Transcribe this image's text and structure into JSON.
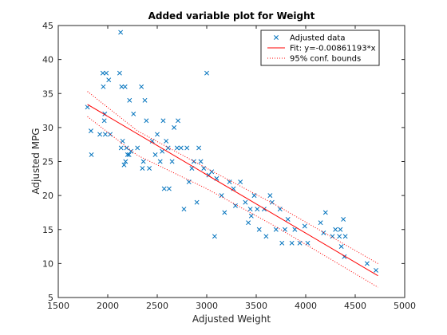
{
  "chart_data": {
    "type": "scatter",
    "title": "Added variable plot for Weight",
    "xlabel": "Adjusted Weight",
    "ylabel": "Adjusted MPG",
    "xlim": [
      1500,
      5000
    ],
    "ylim": [
      5,
      45
    ],
    "xticks": [
      1500,
      2000,
      2500,
      3000,
      3500,
      4000,
      4500,
      5000
    ],
    "yticks": [
      5,
      10,
      15,
      20,
      25,
      30,
      35,
      40,
      45
    ],
    "xtick_labels": [
      "1500",
      "2000",
      "2500",
      "3000",
      "3500",
      "4000",
      "4500",
      "5000"
    ],
    "ytick_labels": [
      "5",
      "10",
      "15",
      "20",
      "25",
      "30",
      "35",
      "40",
      "45"
    ],
    "grid": false,
    "legend_position": "top-right",
    "series": [
      {
        "name": "Adjusted data",
        "kind": "markers",
        "marker": "x",
        "color": "#0072BD",
        "points": [
          [
            1795,
            33
          ],
          [
            1830,
            29.5
          ],
          [
            1835,
            26
          ],
          [
            1920,
            29
          ],
          [
            1950,
            38
          ],
          [
            1955,
            36
          ],
          [
            1965,
            31
          ],
          [
            1970,
            32
          ],
          [
            1975,
            29
          ],
          [
            1985,
            38
          ],
          [
            2010,
            37
          ],
          [
            2025,
            29
          ],
          [
            2120,
            38
          ],
          [
            2130,
            44
          ],
          [
            2135,
            27
          ],
          [
            2140,
            36
          ],
          [
            2150,
            28
          ],
          [
            2165,
            24.5
          ],
          [
            2175,
            36
          ],
          [
            2180,
            25
          ],
          [
            2190,
            27
          ],
          [
            2200,
            26
          ],
          [
            2215,
            26
          ],
          [
            2220,
            34
          ],
          [
            2235,
            26.5
          ],
          [
            2260,
            32
          ],
          [
            2300,
            27
          ],
          [
            2340,
            36
          ],
          [
            2350,
            24
          ],
          [
            2360,
            25
          ],
          [
            2375,
            34
          ],
          [
            2390,
            31
          ],
          [
            2420,
            24
          ],
          [
            2450,
            28
          ],
          [
            2480,
            26
          ],
          [
            2500,
            29
          ],
          [
            2530,
            25
          ],
          [
            2550,
            26.5
          ],
          [
            2560,
            31
          ],
          [
            2570,
            21
          ],
          [
            2590,
            28
          ],
          [
            2610,
            27
          ],
          [
            2620,
            21
          ],
          [
            2650,
            25
          ],
          [
            2670,
            30
          ],
          [
            2700,
            27
          ],
          [
            2710,
            31
          ],
          [
            2740,
            27
          ],
          [
            2770,
            18
          ],
          [
            2800,
            27
          ],
          [
            2820,
            22
          ],
          [
            2850,
            24
          ],
          [
            2870,
            25
          ],
          [
            2900,
            19
          ],
          [
            2920,
            27
          ],
          [
            2940,
            25
          ],
          [
            2970,
            24
          ],
          [
            3000,
            38
          ],
          [
            3020,
            23
          ],
          [
            3050,
            23.5
          ],
          [
            3080,
            14
          ],
          [
            3100,
            22.5
          ],
          [
            3150,
            20
          ],
          [
            3180,
            17.5
          ],
          [
            3230,
            22
          ],
          [
            3270,
            21
          ],
          [
            3290,
            18.5
          ],
          [
            3340,
            22
          ],
          [
            3390,
            19
          ],
          [
            3420,
            16
          ],
          [
            3440,
            18
          ],
          [
            3450,
            17
          ],
          [
            3480,
            20
          ],
          [
            3510,
            18
          ],
          [
            3530,
            15
          ],
          [
            3580,
            18
          ],
          [
            3600,
            14
          ],
          [
            3640,
            20
          ],
          [
            3660,
            19
          ],
          [
            3700,
            15
          ],
          [
            3740,
            18
          ],
          [
            3760,
            13
          ],
          [
            3790,
            15
          ],
          [
            3820,
            16.5
          ],
          [
            3860,
            13
          ],
          [
            3890,
            15
          ],
          [
            3940,
            13
          ],
          [
            3990,
            15.5
          ],
          [
            4020,
            13
          ],
          [
            4150,
            16
          ],
          [
            4180,
            14.5
          ],
          [
            4200,
            17.5
          ],
          [
            4270,
            14
          ],
          [
            4300,
            15
          ],
          [
            4340,
            14
          ],
          [
            4350,
            15
          ],
          [
            4360,
            12.5
          ],
          [
            4380,
            16.5
          ],
          [
            4390,
            11
          ],
          [
            4400,
            14
          ],
          [
            4620,
            10
          ],
          [
            4710,
            9
          ]
        ]
      },
      {
        "name": "Fit: y=-0.00861193*x",
        "kind": "line",
        "style": "solid",
        "color": "#FF0000",
        "points": [
          [
            1795,
            33.4
          ],
          [
            4730,
            8.2
          ]
        ]
      },
      {
        "name": "95% conf. bounds",
        "kind": "line",
        "style": "dotted",
        "color": "#FF0000",
        "points": [
          [
            1795,
            35.3
          ],
          [
            2300,
            29.5
          ],
          [
            3000,
            24.0
          ],
          [
            3700,
            18.6
          ],
          [
            4730,
            10.0
          ]
        ]
      },
      {
        "name": "95% conf. bounds",
        "kind": "line",
        "style": "dotted",
        "color": "#FF0000",
        "show_in_legend": false,
        "points": [
          [
            1795,
            31.6
          ],
          [
            2300,
            25.9
          ],
          [
            3000,
            21.0
          ],
          [
            3700,
            15.4
          ],
          [
            4730,
            6.5
          ]
        ]
      }
    ]
  }
}
